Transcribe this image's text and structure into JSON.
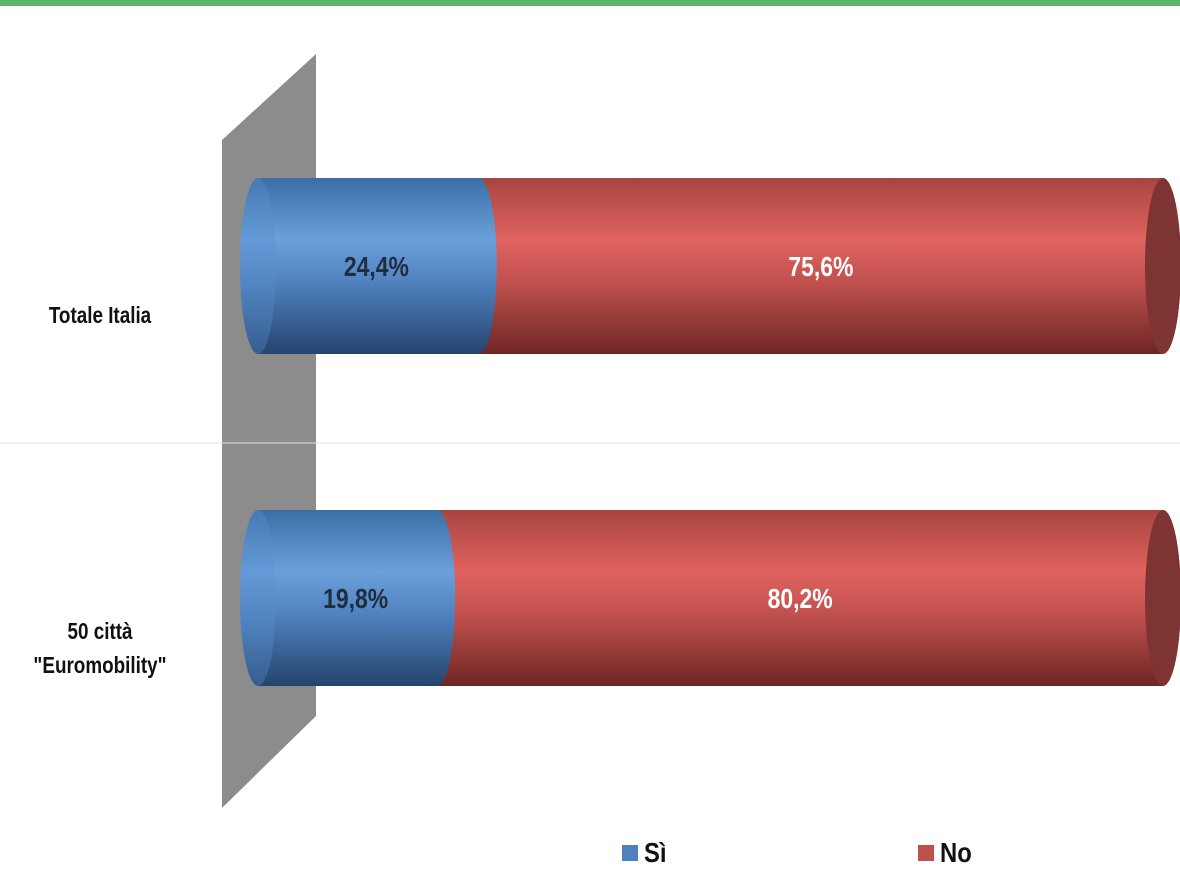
{
  "chart_data": {
    "type": "bar",
    "orientation": "horizontal",
    "stacked": true,
    "percent": true,
    "categories": [
      "Totale  Italia",
      "50 città \"Euromobility\""
    ],
    "category_lines": [
      [
        "Totale  Italia"
      ],
      [
        "50 città",
        "\"Euromobility\""
      ]
    ],
    "series": [
      {
        "name": "Sì",
        "values": [
          24.4,
          19.8
        ],
        "labels": [
          "24,4%",
          "19,8%"
        ],
        "color": "#4f81bd",
        "label_color": "#1f2d3d"
      },
      {
        "name": "No",
        "values": [
          75.6,
          80.2
        ],
        "labels": [
          "75,6%",
          "80,2%"
        ],
        "color": "#c0504d",
        "label_color": "#ffffff"
      }
    ],
    "xlim": [
      0,
      100
    ],
    "legend_position": "bottom",
    "grid": false
  },
  "accent_color": "#5db56c"
}
